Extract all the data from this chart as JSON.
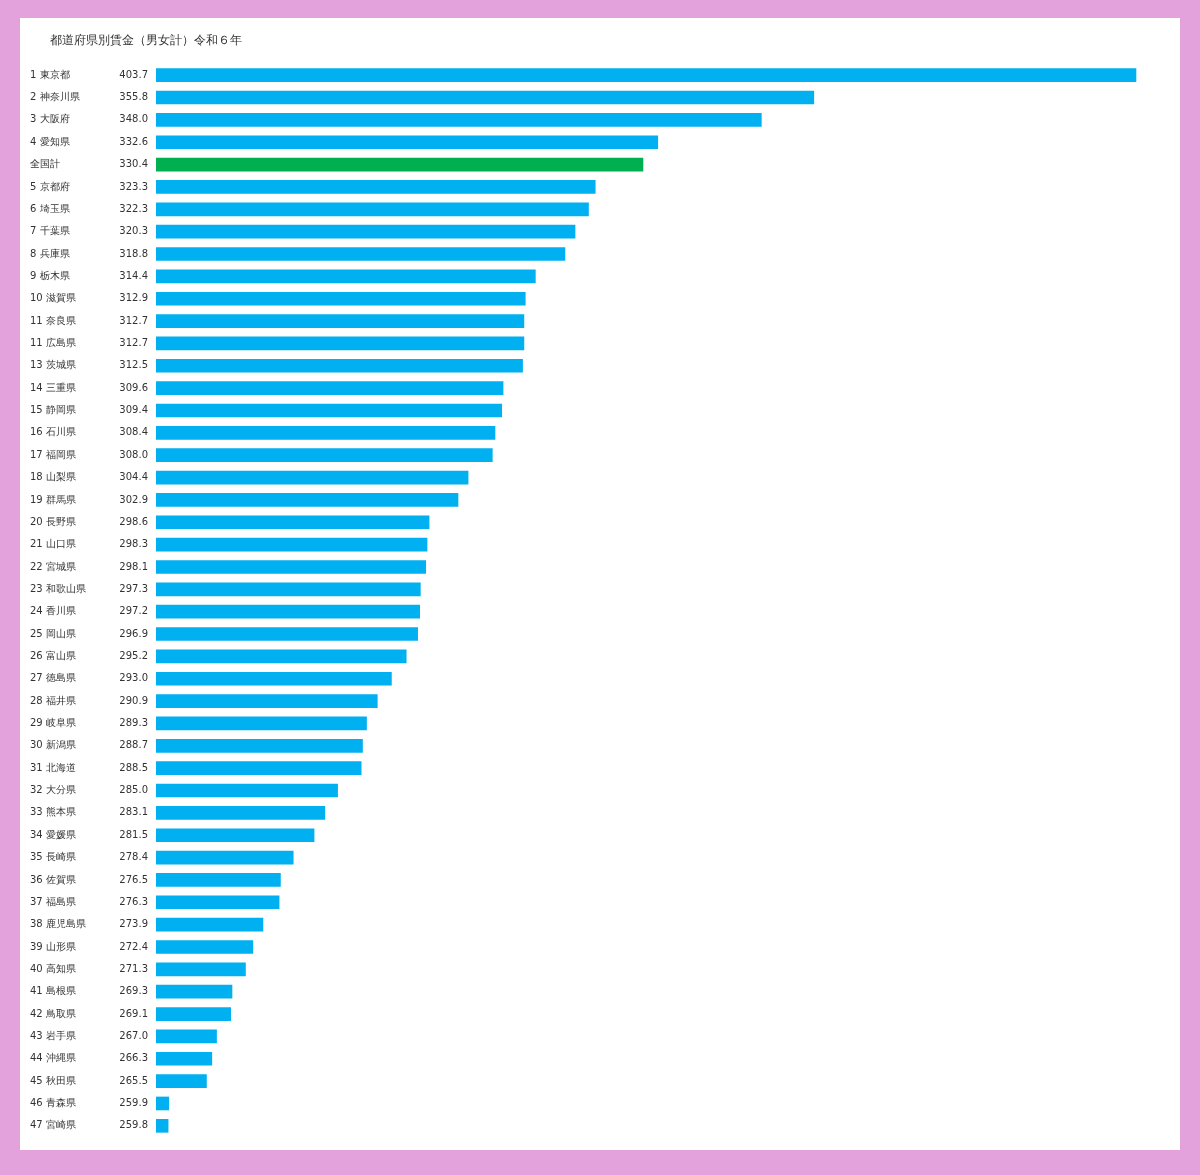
{
  "chart_data": {
    "type": "bar",
    "orientation": "horizontal",
    "title": "都道府県別賃金（男女計）令和６年",
    "categories": [
      "1 東京都",
      "2 神奈川県",
      "3 大阪府",
      "4 愛知県",
      "全国計",
      "5 京都府",
      "6 埼玉県",
      "7 千葉県",
      "8 兵庫県",
      "9 栃木県",
      "10 滋賀県",
      "11 奈良県",
      "11 広島県",
      "13 茨城県",
      "14 三重県",
      "15 静岡県",
      "16 石川県",
      "17 福岡県",
      "18 山梨県",
      "19 群馬県",
      "20 長野県",
      "21 山口県",
      "22 宮城県",
      "23 和歌山県",
      "24 香川県",
      "25 岡山県",
      "26 富山県",
      "27 徳島県",
      "28 福井県",
      "29 岐阜県",
      "30 新潟県",
      "31 北海道",
      "32 大分県",
      "33 熊本県",
      "34 愛媛県",
      "35 長崎県",
      "36 佐賀県",
      "37 福島県",
      "38 鹿児島県",
      "39 山形県",
      "40 高知県",
      "41 島根県",
      "42 鳥取県",
      "43 岩手県",
      "44 沖縄県",
      "45 秋田県",
      "46 青森県",
      "47 宮崎県"
    ],
    "values": [
      403.7,
      355.8,
      348.0,
      332.6,
      330.4,
      323.3,
      322.3,
      320.3,
      318.8,
      314.4,
      312.9,
      312.7,
      312.7,
      312.5,
      309.6,
      309.4,
      308.4,
      308.0,
      304.4,
      302.9,
      298.6,
      298.3,
      298.1,
      297.3,
      297.2,
      296.9,
      295.2,
      293.0,
      290.9,
      289.3,
      288.7,
      288.5,
      285.0,
      283.1,
      281.5,
      278.4,
      276.5,
      276.3,
      273.9,
      272.4,
      271.3,
      269.3,
      269.1,
      267.0,
      266.3,
      265.5,
      259.9,
      259.8
    ],
    "value_labels": [
      "403.7",
      "355.8",
      "348.0",
      "332.6",
      "330.4",
      "323.3",
      "322.3",
      "320.3",
      "318.8",
      "314.4",
      "312.9",
      "312.7",
      "312.7",
      "312.5",
      "309.6",
      "309.4",
      "308.4",
      "308.0",
      "304.4",
      "302.9",
      "298.6",
      "298.3",
      "298.1",
      "297.3",
      "297.2",
      "296.9",
      "295.2",
      "293.0",
      "290.9",
      "289.3",
      "288.7",
      "288.5",
      "285.0",
      "283.1",
      "281.5",
      "278.4",
      "276.5",
      "276.3",
      "273.9",
      "272.4",
      "271.3",
      "269.3",
      "269.1",
      "267.0",
      "266.3",
      "265.5",
      "259.9",
      "259.8"
    ],
    "colors": [
      "#00b0f0",
      "#00b0f0",
      "#00b0f0",
      "#00b0f0",
      "#00b050",
      "#00b0f0",
      "#00b0f0",
      "#00b0f0",
      "#00b0f0",
      "#00b0f0",
      "#00b0f0",
      "#00b0f0",
      "#00b0f0",
      "#00b0f0",
      "#00b0f0",
      "#00b0f0",
      "#00b0f0",
      "#00b0f0",
      "#00b0f0",
      "#00b0f0",
      "#00b0f0",
      "#00b0f0",
      "#00b0f0",
      "#00b0f0",
      "#00b0f0",
      "#00b0f0",
      "#00b0f0",
      "#00b0f0",
      "#00b0f0",
      "#00b0f0",
      "#00b0f0",
      "#00b0f0",
      "#00b0f0",
      "#00b0f0",
      "#00b0f0",
      "#00b0f0",
      "#00b0f0",
      "#00b0f0",
      "#00b0f0",
      "#00b0f0",
      "#00b0f0",
      "#00b0f0",
      "#00b0f0",
      "#00b0f0",
      "#00b0f0",
      "#00b0f0",
      "#00b0f0",
      "#00b0f0"
    ],
    "xlim": [
      258,
      404
    ],
    "tick_labels": "y"
  }
}
